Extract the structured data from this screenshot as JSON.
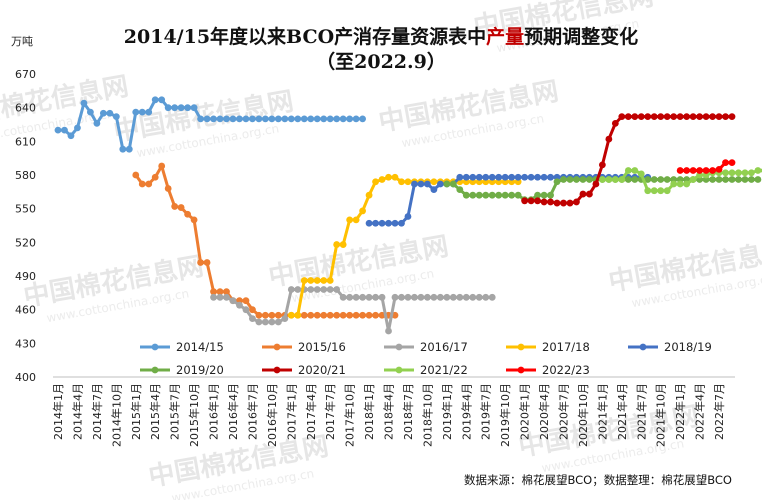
{
  "chart_data": {
    "type": "line",
    "title_parts": [
      {
        "text": "2014/15年度以来BCO产消存量资源表中",
        "color": "#111111"
      },
      {
        "text": "产量",
        "color": "#c00000"
      },
      {
        "text": "预期调整变化",
        "color": "#111111"
      }
    ],
    "subtitle": "（至2022.9）",
    "ylabel": "万吨",
    "ylim": [
      400,
      670
    ],
    "yticks": [
      400,
      430,
      460,
      490,
      520,
      550,
      580,
      610,
      640,
      670
    ],
    "x_start": "2014-01",
    "x_end": "2022-09",
    "xtick_labels": [
      "2014年1月",
      "2014年4月",
      "2014年7月",
      "2014年10月",
      "2015年1月",
      "2015年4月",
      "2015年7月",
      "2015年10月",
      "2016年1月",
      "2016年4月",
      "2016年7月",
      "2016年10月",
      "2017年1月",
      "2017年4月",
      "2017年7月",
      "2017年10月",
      "2018年1月",
      "2018年4月",
      "2018年7月",
      "2018年10月",
      "2019年1月",
      "2019年4月",
      "2019年7月",
      "2019年10月",
      "2020年1月",
      "2020年4月",
      "2020年7月",
      "2020年10月",
      "2021年1月",
      "2021年4月",
      "2021年7月",
      "2021年10月",
      "2022年1月",
      "2022年4月",
      "2022年7月"
    ],
    "grid": false,
    "legend_position": "bottom",
    "source": "数据来源：棉花展望BCO；数据整理：棉花展望BCO",
    "watermark_text": "中国棉花信息网",
    "watermark_url": "www.cottonchina.org.cn",
    "series": [
      {
        "name": "2014/15",
        "color": "#5b9bd5",
        "start": "2014-01",
        "values": [
          620,
          620,
          615,
          622,
          644,
          636,
          626,
          635,
          635,
          632,
          603,
          603,
          636,
          636,
          636,
          647,
          647,
          640,
          640,
          640,
          640,
          640,
          630,
          630,
          630,
          630,
          630,
          630,
          630,
          630,
          630,
          630,
          630,
          630,
          630,
          630,
          630,
          630,
          630,
          630,
          630,
          630,
          630,
          630,
          630,
          630,
          630,
          630
        ]
      },
      {
        "name": "2015/16",
        "color": "#ed7d31",
        "start": "2015-01",
        "values": [
          580,
          572,
          572,
          578,
          588,
          568,
          552,
          551,
          545,
          540,
          502,
          502,
          476,
          476,
          476,
          468,
          468,
          468,
          460,
          455,
          455,
          455,
          455,
          455,
          455,
          455,
          455,
          455,
          455,
          455,
          455,
          455,
          455,
          455,
          455,
          455,
          455,
          455,
          455,
          455,
          455
        ]
      },
      {
        "name": "2016/17",
        "color": "#a5a5a5",
        "start": "2016-01",
        "values": [
          471,
          471,
          471,
          468,
          464,
          460,
          452,
          449,
          449,
          449,
          449,
          452,
          478,
          478,
          478,
          478,
          478,
          478,
          478,
          478,
          471,
          471,
          471,
          471,
          471,
          471,
          471,
          441,
          471,
          471,
          471,
          471,
          471,
          471,
          471,
          471,
          471,
          471,
          471,
          471,
          471,
          471,
          471,
          471
        ]
      },
      {
        "name": "2017/18",
        "color": "#ffc000",
        "start": "2017-01",
        "values": [
          455,
          455,
          486,
          486,
          486,
          486,
          486,
          518,
          518,
          540,
          540,
          548,
          562,
          574,
          576,
          578,
          578,
          574,
          574,
          574,
          574,
          574,
          574,
          574,
          574,
          574,
          574,
          574,
          574,
          574,
          574,
          574,
          574,
          574,
          574,
          574
        ]
      },
      {
        "name": "2018/19",
        "color": "#4472c4",
        "start": "2018-01",
        "values": [
          537,
          537,
          537,
          537,
          537,
          537,
          543,
          572,
          572,
          572,
          567,
          572,
          572,
          572,
          578,
          578,
          578,
          578,
          578,
          578,
          578,
          578,
          578,
          578,
          578,
          578,
          578,
          578,
          578,
          578,
          578,
          578,
          578,
          578,
          578,
          578,
          578,
          578,
          578,
          578,
          578,
          578,
          578,
          578
        ]
      },
      {
        "name": "2019/20",
        "color": "#70ad47",
        "start": "2019-01",
        "values": [
          572,
          572,
          567,
          562,
          562,
          562,
          562,
          562,
          562,
          562,
          562,
          562,
          558,
          558,
          562,
          562,
          562,
          574,
          576,
          576,
          576,
          576,
          576,
          576,
          576,
          576,
          576,
          576,
          576,
          576,
          576,
          576,
          576,
          576,
          576,
          576,
          576,
          576,
          576,
          576,
          576,
          576,
          576,
          576,
          576,
          576,
          576,
          576,
          576
        ]
      },
      {
        "name": "2020/21",
        "color": "#c00000",
        "start": "2020-01",
        "values": [
          557,
          557,
          557,
          556,
          556,
          555,
          555,
          555,
          556,
          563,
          563,
          572,
          589,
          612,
          626,
          632,
          632,
          632,
          632,
          632,
          632,
          632,
          632,
          632,
          632,
          632,
          632,
          632,
          632,
          632,
          632,
          632,
          632
        ]
      },
      {
        "name": "2021/22",
        "color": "#92d050",
        "start": "2021-01",
        "values": [
          576,
          576,
          576,
          576,
          584,
          584,
          581,
          566,
          566,
          566,
          566,
          572,
          572,
          572,
          576,
          580,
          580,
          582,
          582,
          582,
          582,
          582,
          582,
          582,
          584,
          584,
          584
        ]
      },
      {
        "name": "2022/23",
        "color": "#ff0000",
        "start": "2022-01",
        "values": [
          584,
          584,
          584,
          584,
          584,
          584,
          585,
          591,
          591
        ]
      }
    ]
  }
}
